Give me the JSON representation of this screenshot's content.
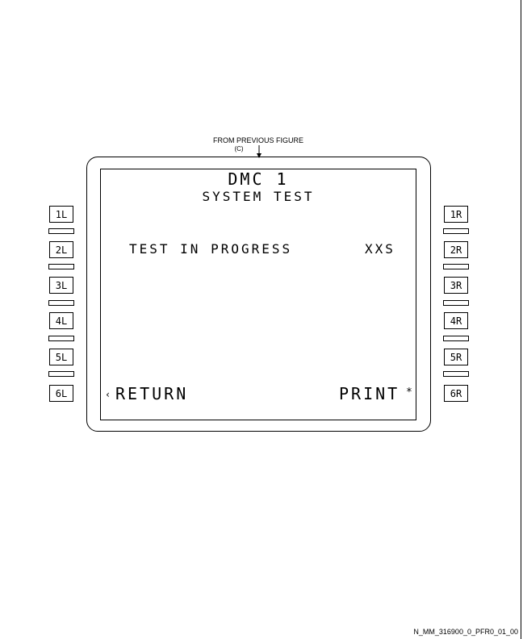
{
  "reference": {
    "line1": "FROM PREVIOUS FIGURE",
    "line2": "(C)"
  },
  "screen": {
    "title": "DMC 1",
    "subtitle": "SYSTEM TEST",
    "status_text": "TEST IN PROGRESS",
    "status_value": "XXS",
    "return_arrow": "‹",
    "return_label": "RETURN",
    "print_label": "PRINT",
    "print_marker": "*"
  },
  "left_keys": [
    "1L",
    "2L",
    "3L",
    "4L",
    "5L",
    "6L"
  ],
  "right_keys": [
    "1R",
    "2R",
    "3R",
    "4R",
    "5R",
    "6R"
  ],
  "figure_id": "N_MM_316900_0_PFR0_01_00"
}
